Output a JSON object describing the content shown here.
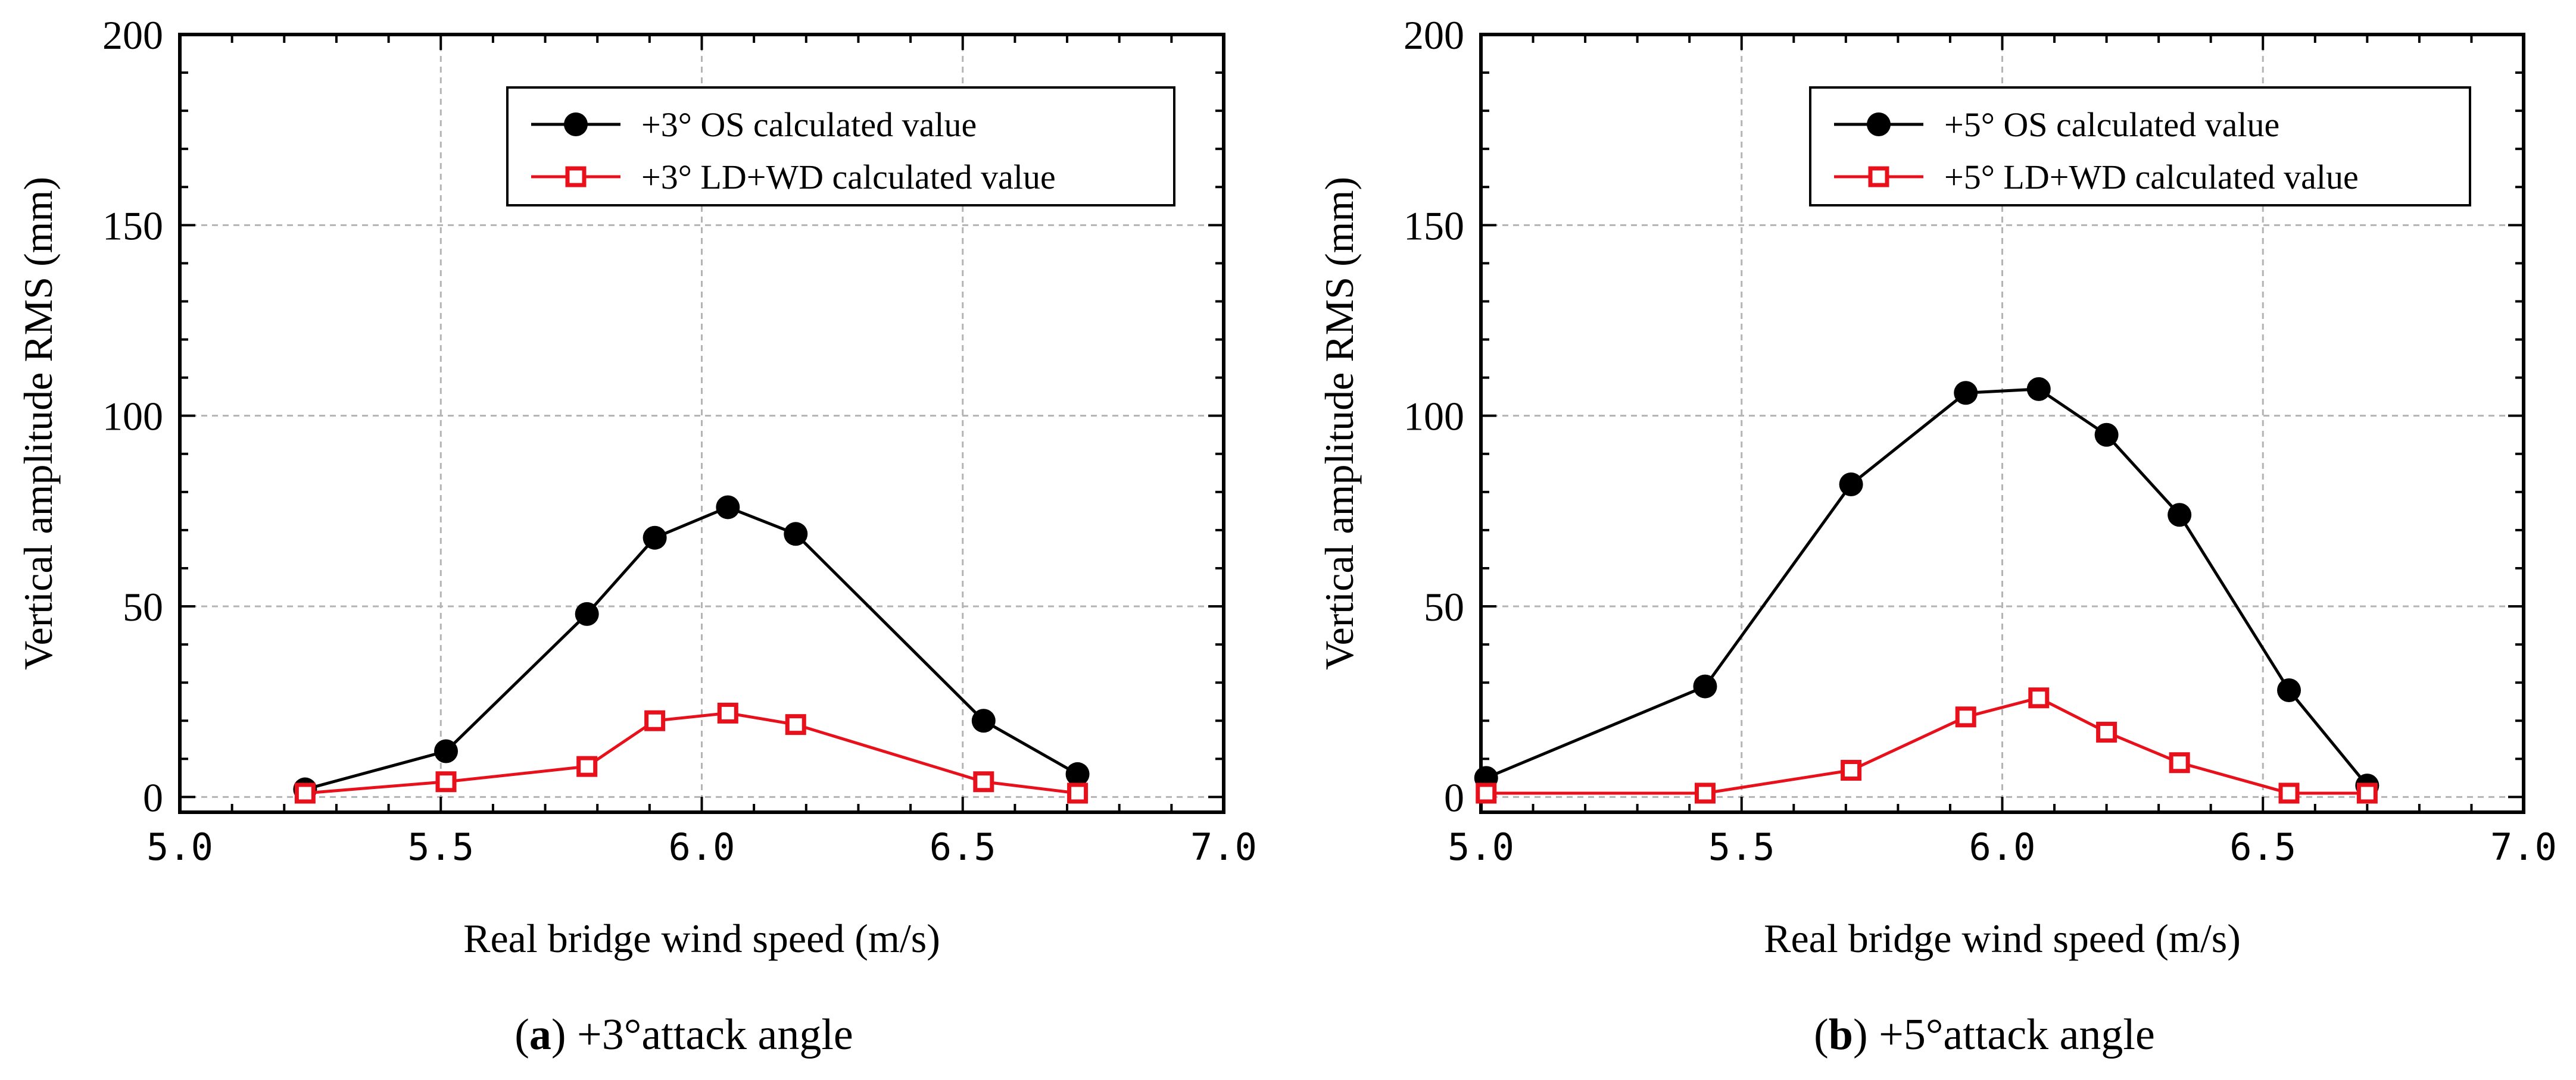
{
  "chart_data": [
    {
      "type": "line",
      "xlabel": "Real bridge wind speed (m/s)",
      "ylabel": "Vertical amplitude RMS (mm)",
      "xlim": [
        5.0,
        7.0
      ],
      "ylim": [
        -4,
        200
      ],
      "xticks": [
        5.0,
        5.5,
        6.0,
        6.5,
        7.0
      ],
      "xtick_labels": [
        "5.0",
        "5.5",
        "6.0",
        "6.5",
        "7.0"
      ],
      "yticks": [
        0,
        50,
        100,
        150,
        200
      ],
      "ytick_labels": [
        "0",
        "50",
        "100",
        "150",
        "200"
      ],
      "grid": true,
      "legend_position": "top-right",
      "caption": {
        "letter": "a",
        "text": " +3°attack angle"
      },
      "series": [
        {
          "name": "+3° OS calculated value",
          "marker": "filled-circle",
          "color": "#000000",
          "x": [
            5.24,
            5.51,
            5.78,
            5.91,
            6.05,
            6.18,
            6.54,
            6.72
          ],
          "y": [
            2,
            12,
            48,
            68,
            76,
            69,
            20,
            6
          ]
        },
        {
          "name": "+3° LD+WD calculated value",
          "marker": "open-square",
          "color": "#e8101a",
          "x": [
            5.24,
            5.51,
            5.78,
            5.91,
            6.05,
            6.18,
            6.54,
            6.72
          ],
          "y": [
            1,
            4,
            8,
            20,
            22,
            19,
            4,
            1
          ]
        }
      ]
    },
    {
      "type": "line",
      "xlabel": "Real bridge wind speed (m/s)",
      "ylabel": "Vertical amplitude RMS (mm)",
      "xlim": [
        5.0,
        7.0
      ],
      "ylim": [
        -4,
        200
      ],
      "xticks": [
        5.0,
        5.5,
        6.0,
        6.5,
        7.0
      ],
      "xtick_labels": [
        "5.0",
        "5.5",
        "6.0",
        "6.5",
        "7.0"
      ],
      "yticks": [
        0,
        50,
        100,
        150,
        200
      ],
      "ytick_labels": [
        "0",
        "50",
        "100",
        "150",
        "200"
      ],
      "grid": true,
      "legend_position": "top-right",
      "caption": {
        "letter": "b",
        "text": " +5°attack angle"
      },
      "series": [
        {
          "name": "+5° OS calculated value",
          "marker": "filled-circle",
          "color": "#000000",
          "x": [
            5.01,
            5.43,
            5.71,
            5.93,
            6.07,
            6.2,
            6.34,
            6.55,
            6.7
          ],
          "y": [
            5,
            29,
            82,
            106,
            107,
            95,
            74,
            28,
            3
          ]
        },
        {
          "name": "+5° LD+WD calculated value",
          "marker": "open-square",
          "color": "#e8101a",
          "x": [
            5.01,
            5.43,
            5.71,
            5.93,
            6.07,
            6.2,
            6.34,
            6.55,
            6.7
          ],
          "y": [
            1,
            1,
            7,
            21,
            26,
            17,
            9,
            1,
            1
          ]
        }
      ]
    }
  ]
}
